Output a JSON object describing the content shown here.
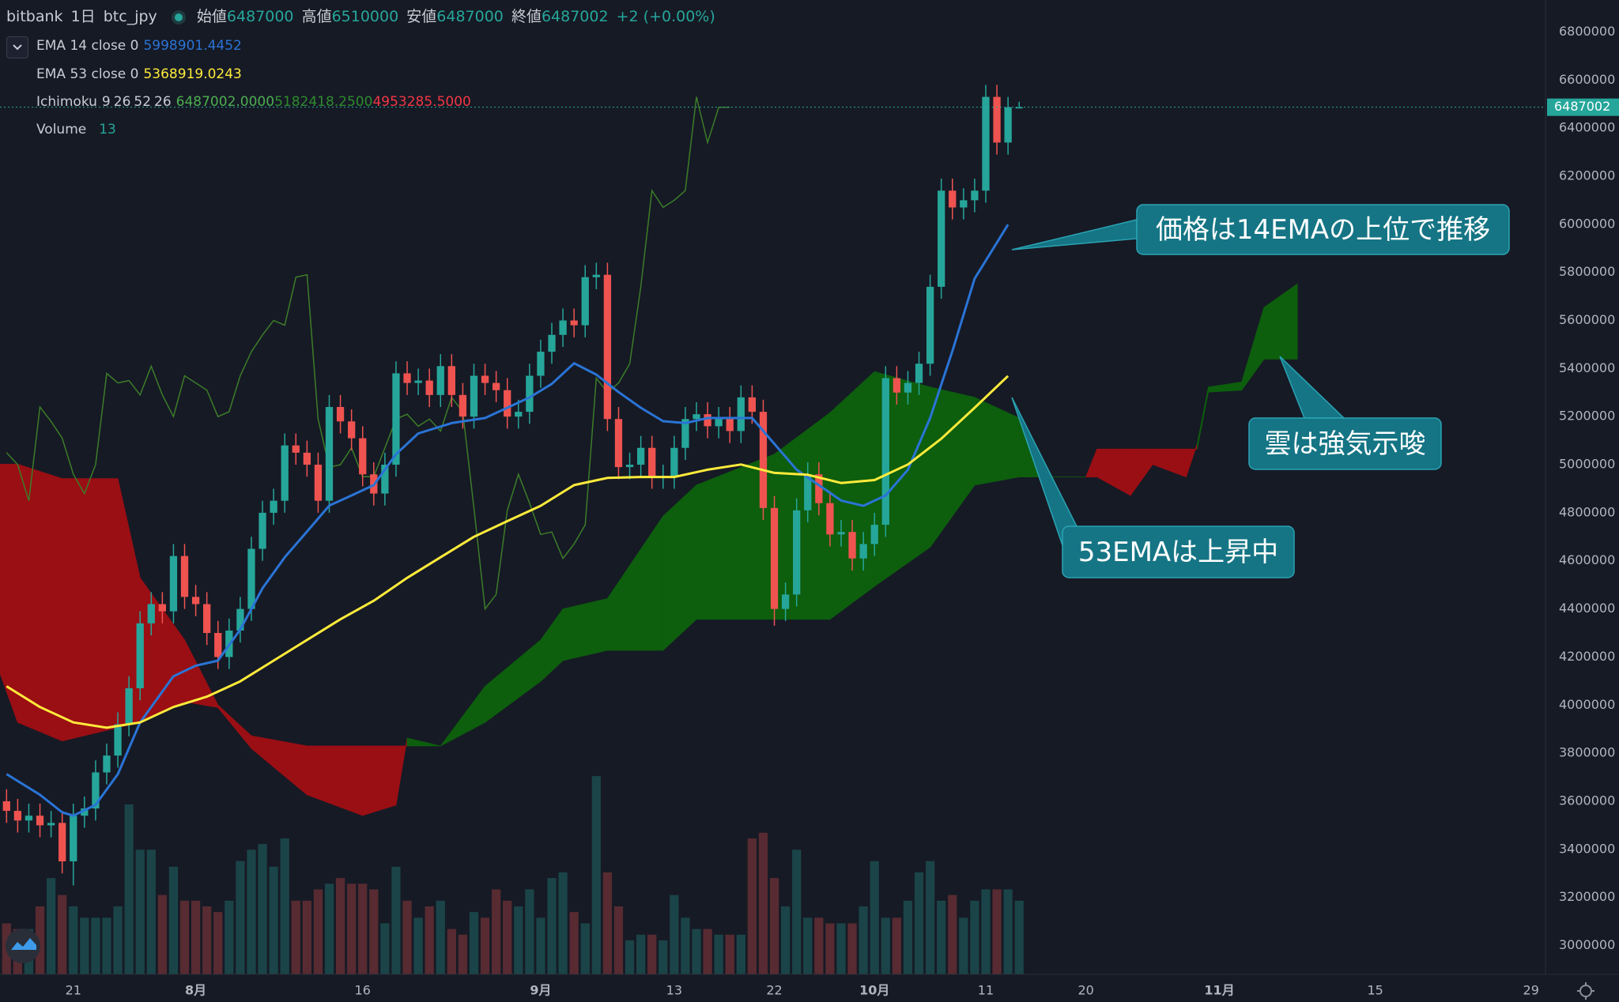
{
  "header": {
    "symbol": "bitbank",
    "interval": "1日",
    "pair": "btc_jpy",
    "labels": [
      "始値",
      "高値",
      "安値",
      "終値"
    ],
    "change": "+2 (+0.00%)"
  },
  "chart_data": {
    "type": "candlestick",
    "x": [
      15,
      16,
      17,
      18,
      19,
      20,
      21,
      22,
      23,
      24,
      25,
      26,
      27,
      28,
      29,
      30,
      31,
      32,
      33,
      34,
      35,
      36,
      37,
      38,
      39,
      40,
      41,
      42,
      43,
      44,
      45,
      46,
      47,
      48,
      49,
      50,
      51,
      52,
      53,
      54,
      55,
      56,
      57,
      58,
      59,
      60,
      61,
      62,
      63,
      64,
      65,
      66,
      67,
      68,
      69,
      70,
      71,
      72,
      73,
      74,
      75,
      76,
      77,
      78,
      79,
      80,
      81,
      82,
      83,
      84,
      85,
      86,
      87,
      88,
      89,
      90,
      91,
      92,
      93,
      94,
      95,
      96,
      97,
      98,
      99,
      100,
      101,
      102,
      103,
      104,
      105,
      106
    ],
    "open": [
      3600000,
      3560000,
      3520000,
      3540000,
      3500000,
      3510000,
      3350000,
      3540000,
      3570000,
      3720000,
      3790000,
      3920000,
      4070000,
      4340000,
      4420000,
      4390000,
      4620000,
      4450000,
      4420000,
      4300000,
      4200000,
      4310000,
      4400000,
      4650000,
      4800000,
      4850000,
      5080000,
      5050000,
      5000000,
      4850000,
      5240000,
      5180000,
      5110000,
      4960000,
      4880000,
      5000000,
      5380000,
      5340000,
      5350000,
      5290000,
      5410000,
      5290000,
      5200000,
      5370000,
      5340000,
      5310000,
      5200000,
      5220000,
      5370000,
      5470000,
      5540000,
      5600000,
      5580000,
      5780000,
      5790000,
      5190000,
      4990000,
      5000000,
      5070000,
      4950000,
      4950000,
      5070000,
      5190000,
      5210000,
      5160000,
      5190000,
      5140000,
      5280000,
      5220000,
      4820000,
      4400000,
      4460000,
      4810000,
      4960000,
      4840000,
      4710000,
      4720000,
      4610000,
      4670000,
      4750000,
      5360000,
      5300000,
      5340000,
      5420000,
      5740000,
      6140000,
      6070000,
      6100000,
      6140000,
      6530000,
      6340000,
      6487000
    ],
    "high": [
      3650000,
      3610000,
      3590000,
      3590000,
      3560000,
      3560000,
      3590000,
      3620000,
      3770000,
      3840000,
      3970000,
      4120000,
      4390000,
      4470000,
      4470000,
      4670000,
      4670000,
      4500000,
      4470000,
      4350000,
      4360000,
      4450000,
      4700000,
      4850000,
      4900000,
      5130000,
      5130000,
      5100000,
      5050000,
      5290000,
      5290000,
      5230000,
      5160000,
      5010000,
      5050000,
      5430000,
      5430000,
      5400000,
      5400000,
      5460000,
      5460000,
      5340000,
      5420000,
      5420000,
      5390000,
      5360000,
      5270000,
      5420000,
      5520000,
      5590000,
      5650000,
      5650000,
      5830000,
      5840000,
      5840000,
      5240000,
      5050000,
      5120000,
      5120000,
      5000000,
      5120000,
      5240000,
      5260000,
      5260000,
      5240000,
      5240000,
      5330000,
      5330000,
      5270000,
      4870000,
      4510000,
      4860000,
      5010000,
      5010000,
      4890000,
      4770000,
      4770000,
      4720000,
      4800000,
      5410000,
      5410000,
      5390000,
      5470000,
      5790000,
      6190000,
      6190000,
      6150000,
      6190000,
      6580000,
      6580000,
      6530000,
      6510000
    ],
    "low": [
      3510000,
      3470000,
      3470000,
      3450000,
      3450000,
      3300000,
      3250000,
      3490000,
      3520000,
      3670000,
      3740000,
      3870000,
      4020000,
      4290000,
      4340000,
      4340000,
      4400000,
      4370000,
      4250000,
      4150000,
      4150000,
      4260000,
      4350000,
      4600000,
      4750000,
      4800000,
      5000000,
      4950000,
      4800000,
      4800000,
      5130000,
      5060000,
      4910000,
      4830000,
      4830000,
      4950000,
      5290000,
      5290000,
      5240000,
      5240000,
      5240000,
      5150000,
      5150000,
      5290000,
      5260000,
      5150000,
      5150000,
      5170000,
      5320000,
      5420000,
      5490000,
      5530000,
      5530000,
      5730000,
      5140000,
      4940000,
      4940000,
      4950000,
      4900000,
      4900000,
      4900000,
      5020000,
      5140000,
      5110000,
      5110000,
      5090000,
      5090000,
      5170000,
      4770000,
      4330000,
      4350000,
      4410000,
      4760000,
      4790000,
      4660000,
      4660000,
      4560000,
      4560000,
      4620000,
      4700000,
      5250000,
      5250000,
      5290000,
      5370000,
      5690000,
      6020000,
      6020000,
      6050000,
      6090000,
      6290000,
      6290000,
      6487000
    ],
    "close": [
      3560000,
      3520000,
      3540000,
      3500000,
      3510000,
      3350000,
      3540000,
      3570000,
      3720000,
      3790000,
      3920000,
      4070000,
      4340000,
      4420000,
      4390000,
      4620000,
      4450000,
      4420000,
      4300000,
      4200000,
      4310000,
      4400000,
      4650000,
      4800000,
      4850000,
      5080000,
      5050000,
      5000000,
      4850000,
      5240000,
      5180000,
      5110000,
      4960000,
      4880000,
      5000000,
      5380000,
      5340000,
      5350000,
      5290000,
      5410000,
      5290000,
      5200000,
      5370000,
      5340000,
      5310000,
      5200000,
      5220000,
      5370000,
      5470000,
      5540000,
      5600000,
      5580000,
      5780000,
      5790000,
      5190000,
      4990000,
      5000000,
      5070000,
      4950000,
      4950000,
      5070000,
      5190000,
      5210000,
      5160000,
      5190000,
      5140000,
      5280000,
      5220000,
      4820000,
      4400000,
      4460000,
      4810000,
      4960000,
      4840000,
      4710000,
      4720000,
      4610000,
      4670000,
      4750000,
      5360000,
      5300000,
      5340000,
      5420000,
      5740000,
      6140000,
      6070000,
      6100000,
      6140000,
      6530000,
      6340000,
      6487000,
      6487002
    ],
    "up_color": "#26a69a",
    "down_color": "#ef5350",
    "xlim": [
      14.41,
      153.3
    ],
    "xticks": [
      21,
      {
        "value": 32,
        "label": "8月"
      },
      {
        "value": 47,
        "label": "16"
      },
      {
        "value": 63,
        "label": "9月"
      },
      {
        "value": 75,
        "label": "13"
      },
      {
        "value": 84,
        "label": "22"
      },
      {
        "value": 93,
        "label": "10月"
      },
      {
        "value": 103,
        "label": "11"
      },
      {
        "value": 112,
        "label": "20"
      },
      {
        "value": 124,
        "label": "11月"
      },
      {
        "value": 138,
        "label": "15"
      },
      {
        "value": 152,
        "label": "29"
      }
    ],
    "ylim": [
      2880000,
      6933000
    ],
    "yticks": [
      3000000,
      3200000,
      3400000,
      3600000,
      3800000,
      4000000,
      4200000,
      4400000,
      4600000,
      4800000,
      5000000,
      5200000,
      5400000,
      5600000,
      5800000,
      6000000,
      6200000,
      6400000,
      6600000,
      6800000
    ],
    "series": [
      {
        "name": "EMA 14 close 0",
        "color": "#2a74d6",
        "x": [
          15,
          18,
          20,
          21,
          23,
          25,
          27,
          30,
          32,
          34,
          36,
          38,
          40,
          42,
          44,
          46,
          48,
          50,
          52,
          55,
          58,
          60,
          62,
          64,
          66,
          68,
          70,
          72,
          74,
          76,
          78,
          80,
          82,
          84,
          86,
          88,
          90,
          92,
          94,
          96,
          98,
          100,
          102,
          104,
          105
        ],
        "values": [
          3713000,
          3627000,
          3554000,
          3540000,
          3585000,
          3713000,
          3928000,
          4120000,
          4164000,
          4185000,
          4314000,
          4486000,
          4615000,
          4722000,
          4830000,
          4872000,
          4915000,
          5044000,
          5130000,
          5173000,
          5194000,
          5237000,
          5280000,
          5336000,
          5422000,
          5375000,
          5302000,
          5237000,
          5181000,
          5173000,
          5194000,
          5194000,
          5194000,
          5087000,
          4979000,
          4915000,
          4851000,
          4829000,
          4872000,
          4979000,
          5194000,
          5473000,
          5774000,
          5924000,
          5998901.4452
        ]
      },
      {
        "name": "EMA 53 close 0",
        "color": "#ffeb3b",
        "x": [
          15,
          18,
          21,
          24,
          27,
          30,
          33,
          36,
          39,
          42,
          45,
          48,
          51,
          54,
          57,
          60,
          63,
          66,
          69,
          72,
          75,
          78,
          81,
          84,
          87,
          90,
          93,
          96,
          99,
          102,
          105
        ],
        "values": [
          4078000,
          3992000,
          3928000,
          3906000,
          3928000,
          3992000,
          4035000,
          4099000,
          4185000,
          4271000,
          4357000,
          4434000,
          4529000,
          4615000,
          4700000,
          4765000,
          4829000,
          4915000,
          4945000,
          4949000,
          4949000,
          4979000,
          5001000,
          4966000,
          4958000,
          4924000,
          4936000,
          5001000,
          5108000,
          5237000,
          5368919.0243
        ]
      }
    ],
    "ichimoku": {
      "name": "Ichimoku",
      "params": [
        9,
        26,
        52,
        26
      ],
      "legend_values": [
        "6487002.0000",
        "5182418.2500",
        "4953285.5000"
      ],
      "legend_colors": [
        "#4caf50",
        "#2e8b2e",
        "#f23645"
      ],
      "x": [
        14,
        16,
        20,
        25,
        27,
        31,
        34,
        37,
        42,
        47,
        50,
        51,
        54,
        58,
        63,
        65,
        69,
        74,
        77,
        84,
        89,
        93,
        98,
        102,
        106,
        109,
        112,
        113,
        116,
        118,
        121,
        122,
        123,
        126,
        128,
        131
      ],
      "span_a": [
        4185000,
        3928000,
        3851000,
        3906000,
        3928000,
        4014000,
        3990000,
        3820000,
        3627000,
        3541000,
        3584000,
        3863000,
        3830000,
        4078000,
        4271000,
        4400000,
        4443000,
        4786000,
        4915000,
        5044000,
        5216000,
        5387000,
        5323000,
        5280000,
        5194000,
        4949000,
        4949000,
        4949000,
        4872000,
        5001000,
        4949000,
        5087000,
        5323000,
        5344000,
        5654000,
        5752000
      ],
      "span_b": [
        5002000,
        5002000,
        4942000,
        4942000,
        4529000,
        4271000,
        4000000,
        3872000,
        3830000,
        3830000,
        3830000,
        3830000,
        3830000,
        3928000,
        4099000,
        4185000,
        4228000,
        4228000,
        4357000,
        4357000,
        4357000,
        4494000,
        4657000,
        4915000,
        4949000,
        4949000,
        4949000,
        5065000,
        5065000,
        5065000,
        5065000,
        5065000,
        5302000,
        5310000,
        5439000,
        5439000
      ],
      "up_color": "#0d5e0d",
      "down_color": "#9a0f14",
      "lagging_color": "#3c7d28"
    },
    "volume": {
      "name": "Volume",
      "ylim": [
        0,
        172
      ],
      "values": [
        9,
        8,
        8,
        12,
        17,
        14,
        12,
        10,
        10,
        10,
        12,
        30,
        22,
        22,
        14,
        19,
        13,
        13,
        12,
        11,
        13,
        20,
        22,
        23,
        19,
        24,
        13,
        13,
        15,
        16,
        17,
        16,
        16,
        15,
        9,
        19,
        13,
        10,
        12,
        13,
        8,
        7,
        11,
        10,
        15,
        13,
        12,
        15,
        10,
        17,
        18,
        11,
        9,
        35,
        18,
        12,
        6,
        7,
        7,
        6,
        14,
        10,
        8,
        8,
        7,
        7,
        7,
        24,
        25,
        17,
        12,
        22,
        10,
        10,
        9,
        9,
        9,
        12,
        20,
        10,
        10,
        13,
        18,
        20,
        13,
        14,
        10,
        13,
        15,
        15,
        15,
        13
      ]
    },
    "annotations": [
      "価格は14EMAの上位で推移",
      "雲は強気示唆",
      "53EMAは上昇中"
    ]
  }
}
